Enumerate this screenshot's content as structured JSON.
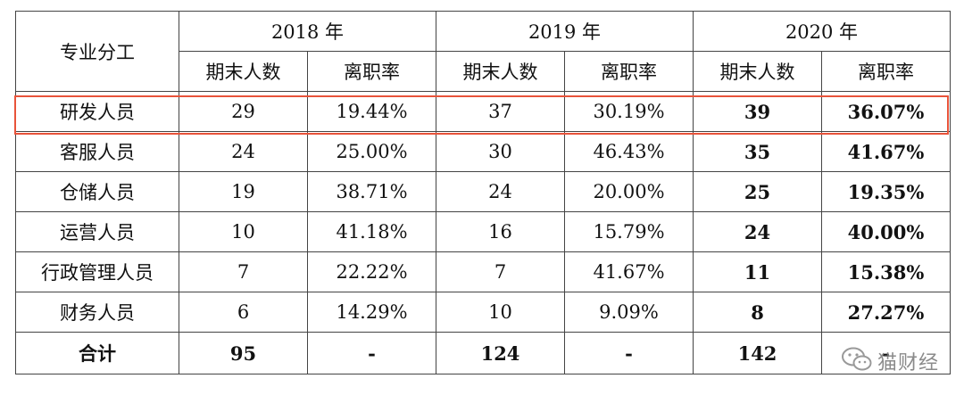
{
  "table": {
    "header": {
      "dept_label": "专业分工",
      "years": [
        "2018 年",
        "2019 年",
        "2020 年"
      ],
      "sub_headers": [
        "期末人数",
        "离职率",
        "期末人数",
        "离职率",
        "期末人数",
        "离职率"
      ]
    },
    "rows": [
      {
        "dept": "研发人员",
        "c2018": "29",
        "r2018": "19.44%",
        "c2019": "37",
        "r2019": "30.19%",
        "c2020": "39",
        "r2020": "36.07%"
      },
      {
        "dept": "客服人员",
        "c2018": "24",
        "r2018": "25.00%",
        "c2019": "30",
        "r2019": "46.43%",
        "c2020": "35",
        "r2020": "41.67%"
      },
      {
        "dept": "仓储人员",
        "c2018": "19",
        "r2018": "38.71%",
        "c2019": "24",
        "r2019": "20.00%",
        "c2020": "25",
        "r2020": "19.35%"
      },
      {
        "dept": "运营人员",
        "c2018": "10",
        "r2018": "41.18%",
        "c2019": "16",
        "r2019": "15.79%",
        "c2020": "24",
        "r2020": "40.00%"
      },
      {
        "dept": "行政管理人员",
        "c2018": "7",
        "r2018": "22.22%",
        "c2019": "7",
        "r2019": "41.67%",
        "c2020": "11",
        "r2020": "15.38%"
      },
      {
        "dept": "财务人员",
        "c2018": "6",
        "r2018": "14.29%",
        "c2019": "10",
        "r2019": "9.09%",
        "c2020": "8",
        "r2020": "27.27%"
      }
    ],
    "total": {
      "dept": "合计",
      "c2018": "95",
      "r2018": "-",
      "c2019": "124",
      "r2019": "-",
      "c2020": "142",
      "r2020": "-"
    }
  },
  "highlight_color": "#e8533a",
  "watermark": {
    "icon": "wechat-icon",
    "text": "猫财经"
  }
}
